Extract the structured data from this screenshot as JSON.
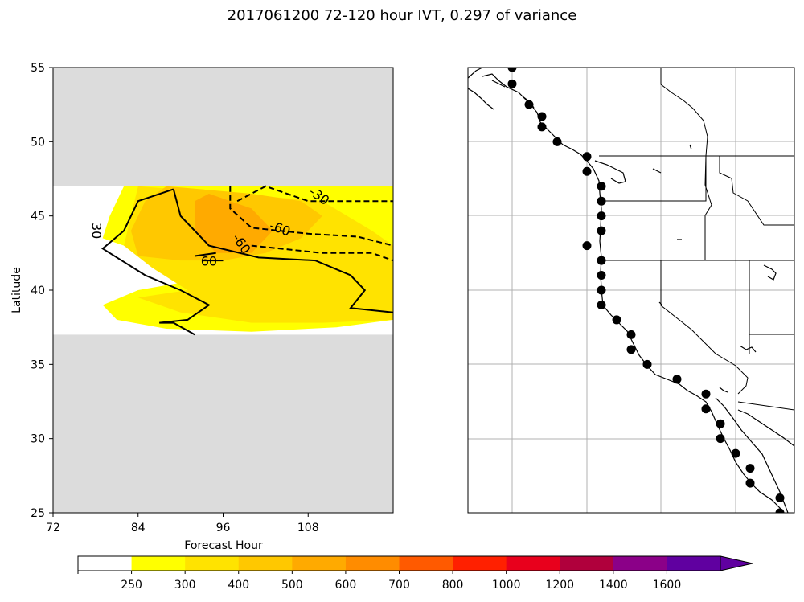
{
  "title": "2017061200 72-120 hour IVT, 0.297 of variance",
  "left_panel": {
    "xlabel": "Forecast Hour",
    "ylabel": "Latitude"
  },
  "colorbar": {
    "levels": [
      "250",
      "300",
      "400",
      "500",
      "600",
      "700",
      "800",
      "1000",
      "1200",
      "1400",
      "1600"
    ],
    "colors": [
      "#ffffff",
      "#ffff00",
      "#ffe300",
      "#ffc800",
      "#ffaa00",
      "#ff8c00",
      "#ff5a00",
      "#ff2000",
      "#e8001c",
      "#b0003c",
      "#8b0088",
      "#6000a0"
    ]
  },
  "chart_data": [
    {
      "type": "heatmap",
      "subtype": "filled contour (Hovmoller) with line contours",
      "xlabel": "Forecast Hour",
      "ylabel": "Latitude",
      "xlim": [
        72,
        120
      ],
      "ylim": [
        25,
        55
      ],
      "xticks": [
        72,
        84,
        96,
        108
      ],
      "yticks": [
        25,
        30,
        35,
        40,
        45,
        50,
        55
      ],
      "masked_regions": [
        {
          "lat_min": 25,
          "lat_max": 37,
          "fill": "#dcdcdc"
        },
        {
          "lat_min": 47,
          "lat_max": 55,
          "fill": "#dcdcdc"
        }
      ],
      "filled_levels": [
        {
          "range": "250-300",
          "color": "#ffff00",
          "polygon": [
            [
              82,
              47
            ],
            [
              120,
              47
            ],
            [
              120,
              38
            ],
            [
              112,
              37.5
            ],
            [
              100,
              37.2
            ],
            [
              88,
              37.4
            ],
            [
              81,
              38
            ],
            [
              79,
              39
            ],
            [
              84,
              40
            ],
            [
              90,
              40.5
            ],
            [
              82,
              43
            ],
            [
              79,
              43.5
            ],
            [
              80,
              45
            ]
          ]
        },
        {
          "range": "300-400",
          "color": "#ffe300",
          "polygon": [
            [
              84,
              47
            ],
            [
              110,
              46
            ],
            [
              117,
              44
            ],
            [
              120,
              43
            ],
            [
              120,
              38
            ],
            [
              110,
              37.8
            ],
            [
              100,
              37.8
            ],
            [
              90,
              38.5
            ],
            [
              84,
              39.5
            ],
            [
              91,
              40
            ],
            [
              86,
              41.5
            ],
            [
              82,
              43
            ],
            [
              83,
              45
            ]
          ]
        },
        {
          "range": "400-500",
          "color": "#ffc800",
          "polygon": [
            [
              88,
              47
            ],
            [
              100,
              46.5
            ],
            [
              107,
              46
            ],
            [
              110,
              45
            ],
            [
              107,
              43.5
            ],
            [
              102,
              42.5
            ],
            [
              96,
              42
            ],
            [
              90,
              42
            ],
            [
              84,
              42.3
            ],
            [
              83,
              44
            ],
            [
              85,
              46
            ]
          ]
        },
        {
          "range": "500-600",
          "color": "#ffaa00",
          "polygon": [
            [
              94,
              46.5
            ],
            [
              100,
              45.5
            ],
            [
              103,
              44
            ],
            [
              100,
              42.5
            ],
            [
              95,
              42.5
            ],
            [
              92,
              44
            ],
            [
              92,
              46
            ]
          ]
        }
      ],
      "line_contours": [
        {
          "label": "30",
          "style": "solid",
          "points": [
            [
              89,
              46.8
            ],
            [
              84,
              46
            ],
            [
              82,
              44
            ],
            [
              79,
              42.8
            ],
            [
              85,
              41
            ],
            [
              90,
              40
            ],
            [
              94,
              39
            ],
            [
              91,
              38
            ],
            [
              87,
              37.8
            ],
            [
              89,
              37.8
            ],
            [
              92,
              37
            ]
          ]
        },
        {
          "label": "30",
          "style": "solid",
          "points": [
            [
              89,
              46.8
            ],
            [
              90,
              45
            ],
            [
              94,
              43
            ],
            [
              101,
              42.2
            ],
            [
              109,
              42
            ],
            [
              114,
              41
            ],
            [
              116,
              40
            ],
            [
              114,
              38.8
            ],
            [
              120,
              38.5
            ]
          ]
        },
        {
          "label": "60",
          "style": "solid",
          "points": [
            [
              93,
              42
            ],
            [
              96,
              42
            ]
          ]
        },
        {
          "label": "60",
          "style": "solid",
          "points": [
            [
              92,
              42.3
            ],
            [
              95,
              42.5
            ]
          ]
        },
        {
          "label": "-60",
          "style": "dashed",
          "points": [
            [
              97,
              47
            ],
            [
              97,
              45.5
            ],
            [
              100,
              44.2
            ],
            [
              108,
              43.8
            ],
            [
              115,
              43.6
            ],
            [
              120,
              43
            ]
          ]
        },
        {
          "label": "-30",
          "style": "dashed",
          "points": [
            [
              98,
              46
            ],
            [
              102,
              47
            ],
            [
              108,
              46
            ],
            [
              113,
              46
            ],
            [
              120,
              46
            ]
          ]
        },
        {
          "label": "-60",
          "style": "dashed",
          "points": [
            [
              100,
              43
            ],
            [
              110,
              42.5
            ],
            [
              117,
              42.5
            ],
            [
              120,
              42
            ]
          ]
        }
      ]
    },
    {
      "type": "scatter",
      "subtype": "map of west coast with points",
      "description_points_lat": [
        55,
        53.9,
        52.5,
        51.7,
        51,
        50,
        49,
        48,
        47,
        46,
        45,
        44,
        43,
        42,
        41,
        40,
        39,
        38,
        37,
        36,
        35,
        34,
        33,
        32,
        31,
        30,
        29,
        28,
        27,
        26,
        25
      ]
    }
  ]
}
